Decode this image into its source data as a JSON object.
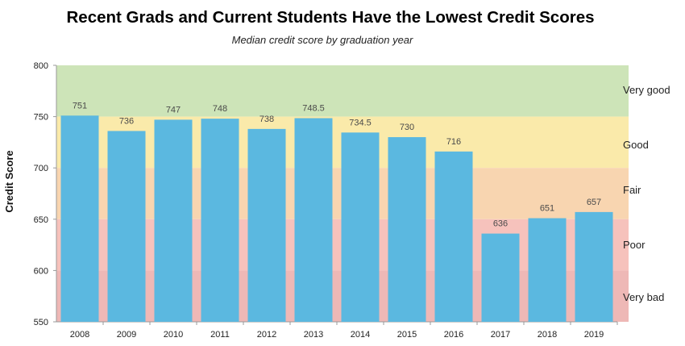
{
  "chart_data": {
    "type": "bar",
    "title": "Recent Grads and Current Students Have the Lowest Credit Scores",
    "subtitle": "Median credit score by graduation year",
    "xlabel": "",
    "ylabel": "Credit Score",
    "ylim": [
      550,
      800
    ],
    "yticks": [
      550,
      600,
      650,
      700,
      750,
      800
    ],
    "categories": [
      "2008",
      "2009",
      "2010",
      "2011",
      "2012",
      "2013",
      "2014",
      "2015",
      "2016",
      "2017",
      "2018",
      "2019"
    ],
    "values": [
      751,
      736,
      747,
      748,
      738,
      748.5,
      734.5,
      730,
      716,
      636,
      651,
      657
    ],
    "value_labels": [
      "751",
      "736",
      "747",
      "748",
      "738",
      "748.5",
      "734.5",
      "730",
      "716",
      "636",
      "651",
      "657"
    ],
    "bar_color": "#5bb8e0",
    "bands": [
      {
        "label": "Very good",
        "from": 750,
        "to": 800,
        "color": "#cde4b8"
      },
      {
        "label": "Good",
        "from": 700,
        "to": 750,
        "color": "#faeaaa"
      },
      {
        "label": "Fair",
        "from": 650,
        "to": 700,
        "color": "#f8d5b0"
      },
      {
        "label": "Poor",
        "from": 600,
        "to": 650,
        "color": "#f6c2bc"
      },
      {
        "label": "Very bad",
        "from": 550,
        "to": 600,
        "color": "#eeb8b6"
      }
    ]
  }
}
